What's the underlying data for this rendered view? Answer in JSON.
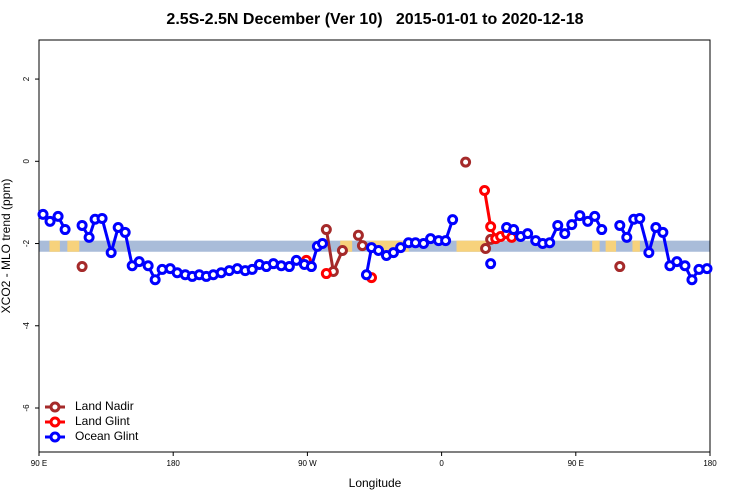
{
  "chart_data": {
    "type": "line",
    "title": "2.5S-2.5N December (Ver 10)   2015-01-01 to 2020-12-18",
    "x_label": "Longitude",
    "y_label": "XCO2 - MLO trend (ppm)",
    "xlim": [
      90,
      540
    ],
    "xticks": [
      {
        "value": 90,
        "label": "90 E"
      },
      {
        "value": 180,
        "label": "180"
      },
      {
        "value": 270,
        "label": "90 W"
      },
      {
        "value": 360,
        "label": "0"
      },
      {
        "value": 450,
        "label": "90 E"
      },
      {
        "value": 540,
        "label": "180"
      }
    ],
    "ylim": [
      -7.07,
      2.95
    ],
    "yticks": [
      -6,
      -4,
      -2,
      0,
      2
    ],
    "legend": "bottom-left",
    "band": {
      "range": [
        -2.2,
        -1.93
      ],
      "color": "#a9bcd9",
      "land_color": "#f7d27c",
      "land_ranges": [
        [
          97,
          104
        ],
        [
          109,
          117
        ],
        [
          292,
          300
        ],
        [
          312,
          338
        ],
        [
          370,
          390
        ],
        [
          461,
          466
        ],
        [
          470,
          477
        ],
        [
          488,
          493
        ]
      ]
    },
    "series": [
      {
        "name": "Land Nadir",
        "color": "#a52a2a",
        "x": [
          118.9,
          null,
          282.7,
          287.4,
          293.5,
          null,
          304.2,
          306.9,
          null,
          376.1,
          null,
          389.5,
          392.9,
          null,
          479.5
        ],
        "values": [
          -2.56,
          null,
          -1.66,
          -2.68,
          -2.17,
          null,
          -1.8,
          -2.05,
          null,
          -0.02,
          null,
          -2.12,
          -1.9,
          null,
          -2.56
        ]
      },
      {
        "name": "Land Glint",
        "color": "#ff0000",
        "x": [
          269.3,
          null,
          282.7,
          null,
          313.0,
          null,
          388.8,
          392.9,
          396.3,
          399.6,
          403.6,
          407.0
        ],
        "values": [
          -2.41,
          null,
          -2.73,
          null,
          -2.83,
          null,
          -0.71,
          -1.59,
          -1.88,
          -1.83,
          -1.76,
          -1.85
        ]
      },
      {
        "name": "Ocean Glint",
        "color": "#0000ff",
        "x": [
          92.7,
          97.4,
          102.8,
          107.5,
          null,
          118.9,
          123.6,
          127.6,
          132.3,
          138.4,
          143.1,
          147.8,
          152.5,
          157.2,
          163.2,
          167.9,
          172.6,
          178.0,
          182.7,
          188.1,
          192.8,
          197.5,
          202.2,
          206.9,
          212.2,
          217.6,
          223.0,
          228.3,
          233.0,
          237.8,
          242.5,
          247.2,
          252.5,
          257.9,
          262.6,
          268.0,
          272.7,
          276.7,
          280.1,
          null,
          309.6,
          313.0,
          317.7,
          323.0,
          327.7,
          332.5,
          337.8,
          342.5,
          347.9,
          352.6,
          358.0,
          362.7,
          367.4,
          null,
          392.9,
          null,
          403.6,
          408.3,
          413.0,
          417.7,
          423.1,
          427.8,
          432.5,
          437.9,
          442.6,
          447.3,
          452.7,
          458.0,
          462.7,
          467.4,
          null,
          479.5,
          484.2,
          488.9,
          492.9,
          499.0,
          503.7,
          508.4,
          513.1,
          517.8,
          523.2,
          527.9,
          532.6,
          538.0
        ],
        "values": [
          -1.29,
          -1.46,
          -1.34,
          -1.66,
          null,
          -1.56,
          -1.85,
          -1.41,
          -1.39,
          -2.22,
          -1.61,
          -1.73,
          -2.54,
          -2.44,
          -2.54,
          -2.88,
          -2.63,
          -2.61,
          -2.71,
          -2.76,
          -2.8,
          -2.76,
          -2.8,
          -2.76,
          -2.71,
          -2.66,
          -2.61,
          -2.66,
          -2.63,
          -2.51,
          -2.56,
          -2.49,
          -2.54,
          -2.56,
          -2.41,
          -2.51,
          -2.56,
          -2.07,
          -2.0,
          null,
          -2.76,
          -2.1,
          -2.17,
          -2.29,
          -2.22,
          -2.1,
          -1.98,
          -1.98,
          -2.0,
          -1.88,
          -1.93,
          -1.93,
          -1.42,
          null,
          -2.49,
          null,
          -1.61,
          -1.66,
          -1.83,
          -1.76,
          -1.93,
          -2.0,
          -1.98,
          -1.56,
          -1.76,
          -1.54,
          -1.32,
          -1.46,
          -1.34,
          -1.66,
          null,
          -1.56,
          -1.85,
          -1.41,
          -1.39,
          -2.22,
          -1.61,
          -1.73,
          -2.54,
          -2.44,
          -2.54,
          -2.88,
          -2.63,
          -2.61
        ]
      }
    ]
  }
}
